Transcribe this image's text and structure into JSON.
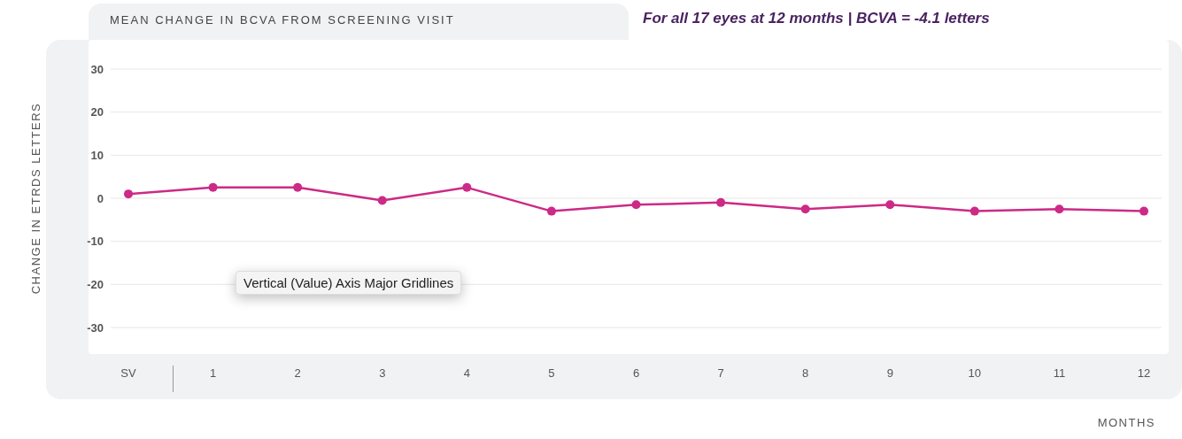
{
  "chart_data": {
    "type": "line",
    "title": "MEAN CHANGE IN BCVA FROM SCREENING VISIT",
    "subtitle": "For all 17 eyes at 12 months | BCVA = -4.1 letters",
    "ylabel": "CHANGE IN ETRDS LETTERS",
    "xlabel": "MONTHS",
    "annotations": [
      "Vertical (Value) Axis Major Gridlines"
    ],
    "categories": [
      "SV",
      "1",
      "2",
      "3",
      "4",
      "5",
      "6",
      "7",
      "8",
      "9",
      "10",
      "11",
      "12"
    ],
    "series": [
      {
        "color": "#cc2a86",
        "values": [
          1,
          2.5,
          2.5,
          -0.5,
          2.5,
          -3,
          -1.5,
          -1,
          -2.5,
          -1.5,
          -3,
          -2.5,
          -3
        ]
      }
    ],
    "ylim": [
      -30,
      30
    ],
    "yticks": [
      -30,
      -20,
      -10,
      0,
      10,
      20,
      30
    ],
    "grid": "y",
    "legend": false,
    "marker": "circle",
    "line_style": "solid"
  }
}
